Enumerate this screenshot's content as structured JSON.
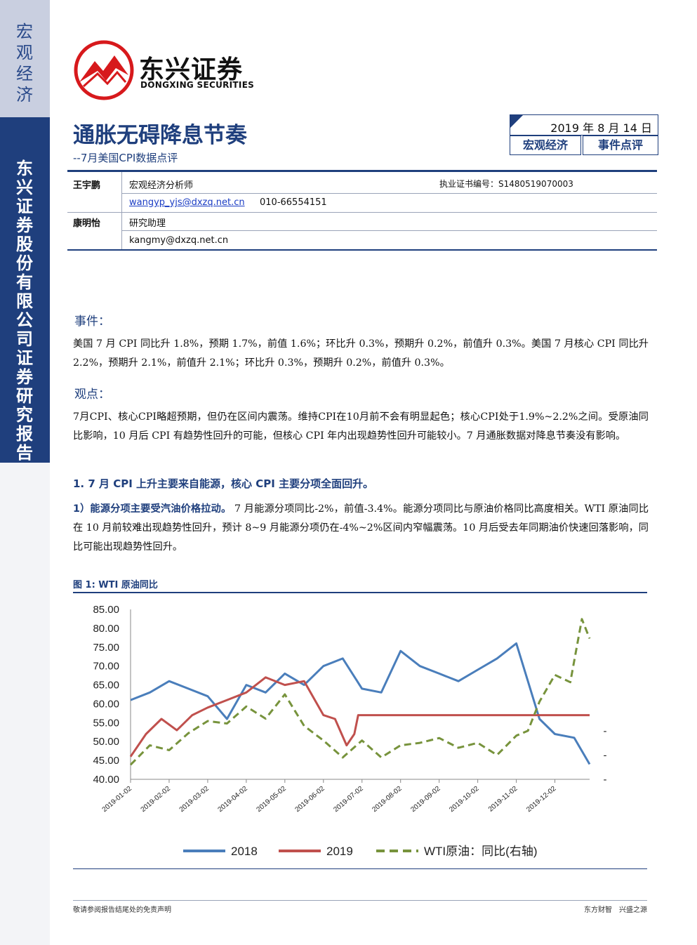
{
  "sidebar": {
    "top_label": "宏观经济",
    "org_label": "东兴证券股份有限公司证券研究报告"
  },
  "brand": {
    "name_cn": "东兴证券",
    "name_en": "DONGXING SECURITIES",
    "colors": {
      "primary": "#1f3f7d",
      "logo_red": "#d7191c"
    }
  },
  "report": {
    "title": "通胀无碍降息节奏",
    "subtitle": "--7月美国CPI数据点评",
    "date": "2019 年 8 月 14 日",
    "tags": [
      "宏观经济",
      "事件点评"
    ]
  },
  "authors": [
    {
      "name": "王宇鹏",
      "role": "宏观经济分析师",
      "license": "执业证书编号：S1480519070003",
      "email": "wangyp_yjs@dxzq.net.cn",
      "phone": "010-66554151"
    },
    {
      "name": "康明怡",
      "role": "研究助理",
      "email": "kangmy@dxzq.net.cn"
    }
  ],
  "sections": {
    "event_heading": "事件：",
    "event_text": "美国 7 月 CPI 同比升 1.8%，预期 1.7%，前值 1.6%；环比升 0.3%，预期升 0.2%，前值升 0.3%。美国 7 月核心 CPI 同比升 2.2%，预期升 2.1%，前值升 2.1%；环比升 0.3%，预期升 0.2%，前值升 0.3%。",
    "view_heading": "观点：",
    "view_text": "7月CPI、核心CPI略超预期，但仍在区间内震荡。维持CPI在10月前不会有明显起色；核心CPI处于1.9%~2.2%之间。受原油同比影响，10 月后 CPI 有趋势性回升的可能，但核心 CPI 年内出现趋势性回升可能较小。7 月通胀数据对降息节奏没有影响。",
    "point1_heading": "1.  7 月 CPI 上升主要来自能源，核心 CPI 主要分项全面回升。",
    "point1_lead": "1）能源分项主要受汽油价格拉动。",
    "point1_text": "7 月能源分项同比-2%，前值-3.4%。能源分项同比与原油价格同比高度相关。WTI 原油同比在 10 月前较难出现趋势性回升，预计 8~9 月能源分项仍在-4%~2%区间内窄幅震荡。10 月后受去年同期油价快速回落影响，同比可能出现趋势性回升。"
  },
  "figure": {
    "title": "图 1: WTI 原油同比"
  },
  "chart_data": {
    "type": "line",
    "x_ticks": [
      "2019-01-02",
      "2019-02-02",
      "2019-03-02",
      "2019-04-02",
      "2019-05-02",
      "2019-06-02",
      "2019-07-02",
      "2019-08-02",
      "2019-09-02",
      "2019-10-02",
      "2019-11-02",
      "2019-12-02"
    ],
    "y_left": {
      "min": 40,
      "max": 85,
      "ticks": [
        "40.00",
        "45.00",
        "50.00",
        "55.00",
        "60.00",
        "65.00",
        "70.00",
        "75.00",
        "80.00",
        "85.00"
      ]
    },
    "y_right": {
      "min": -30,
      "max": 40,
      "ticks": [
        "-30.00",
        "-20.00",
        "-10.00",
        "0.00",
        "10.00",
        "20.00",
        "30.00",
        "40.00"
      ]
    },
    "series": [
      {
        "name": "2018",
        "axis": "left",
        "color": "#4a7ebb",
        "dash": false,
        "x": [
          0,
          0.5,
          1,
          1.5,
          2,
          2.5,
          3,
          3.5,
          4,
          4.5,
          5,
          5.5,
          6,
          6.5,
          7,
          7.5,
          8,
          8.5,
          9,
          9.5,
          10,
          10.3,
          10.6,
          11,
          11.5,
          11.9
        ],
        "values": [
          61,
          63,
          66,
          64,
          62,
          56,
          65,
          63,
          68,
          65,
          70,
          72,
          64,
          63,
          74,
          70,
          68,
          66,
          69,
          72,
          76,
          66,
          56,
          52,
          51,
          44
        ]
      },
      {
        "name": "2019",
        "axis": "left",
        "color": "#c0504d",
        "dash": false,
        "x": [
          0,
          0.4,
          0.8,
          1.2,
          1.6,
          2,
          2.5,
          3,
          3.5,
          4,
          4.5,
          5,
          5.3,
          5.6,
          5.8,
          5.9,
          6,
          7,
          8,
          9,
          10,
          11,
          11.9
        ],
        "values": [
          46,
          52,
          56,
          53,
          57,
          59,
          61,
          63,
          67,
          65,
          66,
          57,
          56,
          49,
          52,
          57,
          57,
          57,
          57,
          57,
          57,
          57,
          57
        ]
      },
      {
        "name": "WTI原油：同比(右轴)",
        "axis": "right",
        "color": "#77933c",
        "dash": true,
        "x": [
          0,
          0.5,
          1,
          1.5,
          2,
          2.5,
          3,
          3.5,
          4,
          4.5,
          5,
          5.5,
          6,
          6.5,
          7,
          7.5,
          8,
          8.5,
          9,
          9.5,
          10,
          10.3,
          10.6,
          11,
          11.4,
          11.7,
          11.9
        ],
        "values": [
          -24,
          -16,
          -18,
          -11,
          -6,
          -7,
          0,
          -5,
          5,
          -8,
          -14,
          -21,
          -14,
          -21,
          -16,
          -15,
          -13,
          -17,
          -15,
          -20,
          -12,
          -10,
          2,
          13,
          10,
          36,
          28
        ]
      }
    ]
  }
}
